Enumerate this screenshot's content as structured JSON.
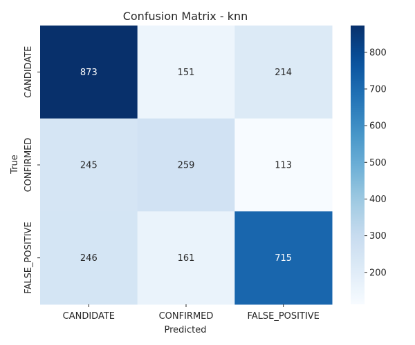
{
  "chart_data": {
    "type": "heatmap",
    "title": "Confusion Matrix - knn",
    "xlabel": "Predicted",
    "ylabel": "True",
    "x_categories": [
      "CANDIDATE",
      "CONFIRMED",
      "FALSE_POSITIVE"
    ],
    "y_categories": [
      "CANDIDATE",
      "CONFIRMED",
      "FALSE_POSITIVE"
    ],
    "values": [
      [
        873,
        151,
        214
      ],
      [
        245,
        259,
        113
      ],
      [
        246,
        161,
        715
      ]
    ],
    "colormap": "Blues",
    "color_range": [
      113,
      873
    ],
    "colorbar_ticks": [
      200,
      300,
      400,
      500,
      600,
      700,
      800
    ],
    "annotations": true,
    "grid": false
  }
}
